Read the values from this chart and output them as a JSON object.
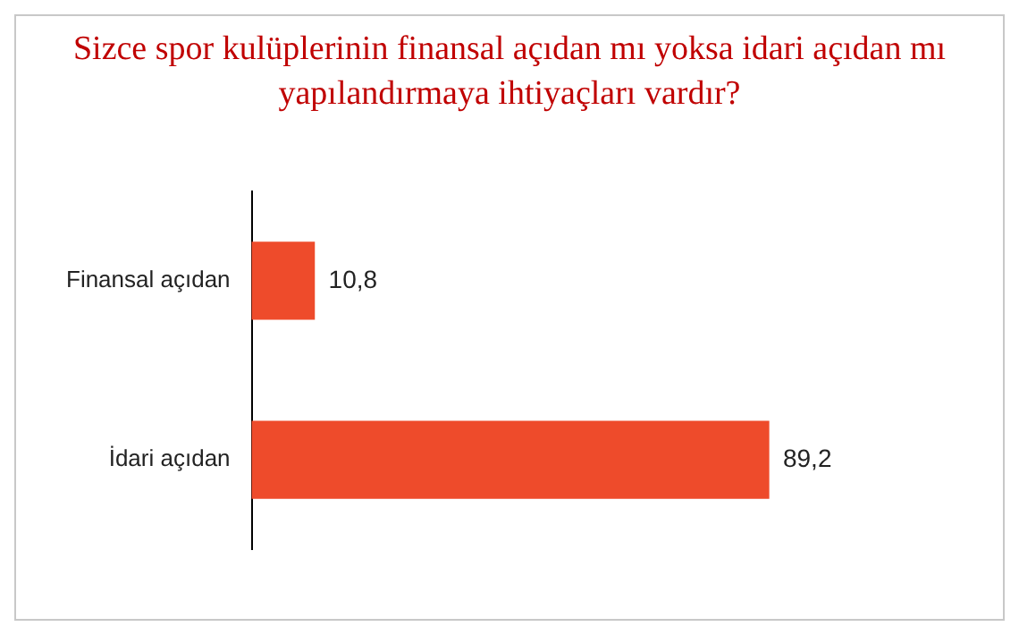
{
  "chart_data": {
    "type": "bar",
    "orientation": "horizontal",
    "title": "Sizce spor kulüplerinin finansal açıdan mı yoksa idari açıdan mı yapılandırmaya ihtiyaçları vardır?",
    "categories": [
      "Finansal açıdan",
      "İdari açıdan"
    ],
    "values": [
      10.8,
      89.2
    ],
    "value_labels": [
      "10,8",
      "89,2"
    ],
    "color": "#ee4b2b"
  }
}
